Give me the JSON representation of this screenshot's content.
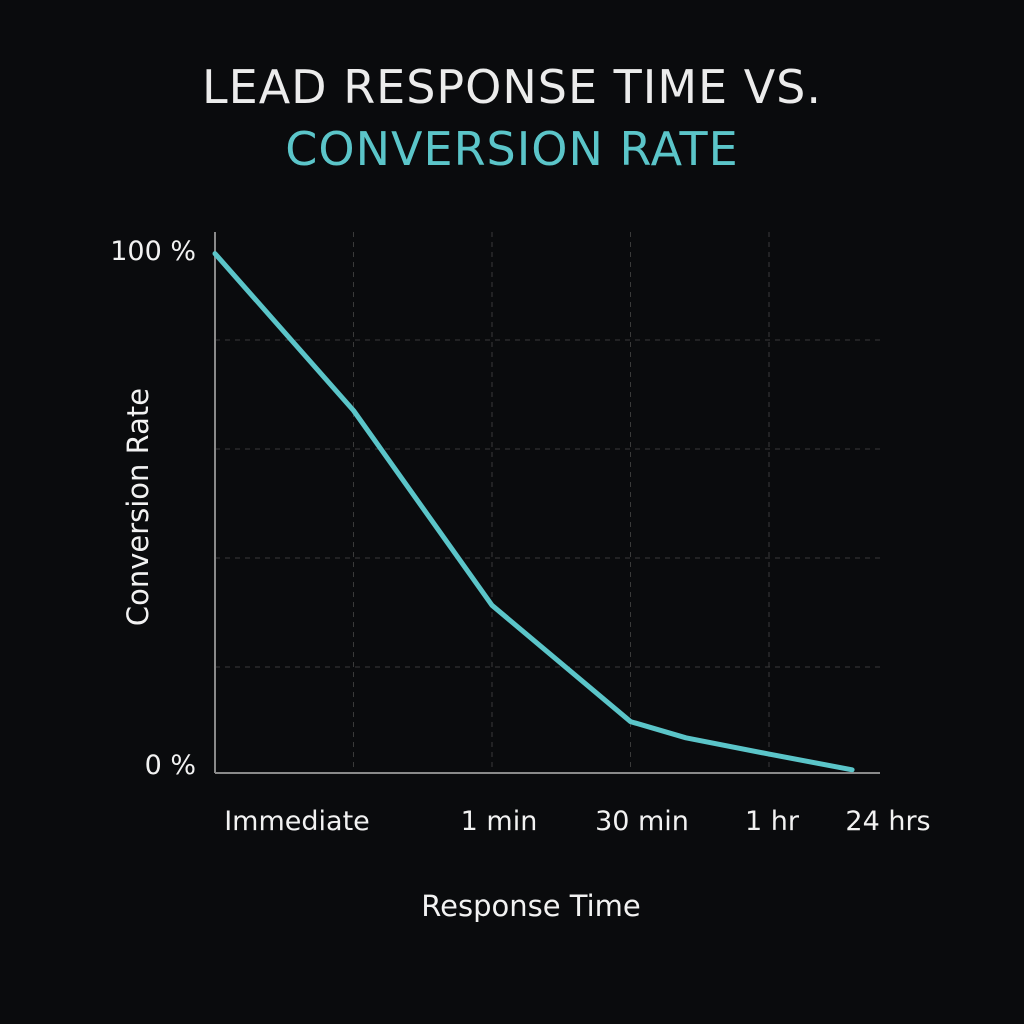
{
  "colors": {
    "background": "#0a0b0d",
    "title_primary": "#ececec",
    "title_accent": "#5bc5c9",
    "line": "#5bc5c9",
    "axis": "#8a8a8a",
    "grid": "#3a3a3a",
    "text": "#f2f2f2"
  },
  "chart_data": {
    "type": "line",
    "title": [
      "LEAD RESPONSE TIME VS.",
      "CONVERSION RATE"
    ],
    "xlabel": "Response Time",
    "ylabel": "Conversion Rate",
    "x_tick_labels": [
      "Immediate",
      "1 min",
      "30 min",
      "1 hr",
      "24 hrs"
    ],
    "y_tick_labels": [
      "100 %",
      "0 %"
    ],
    "ylim": [
      0,
      100
    ],
    "grid": true,
    "series": [
      {
        "name": "Conversion Rate",
        "x": [
          0,
          1,
          2,
          3,
          3.4,
          4,
          4.6
        ],
        "values": [
          96,
          67,
          31,
          9.5,
          6.5,
          3.5,
          0.6
        ]
      }
    ]
  }
}
